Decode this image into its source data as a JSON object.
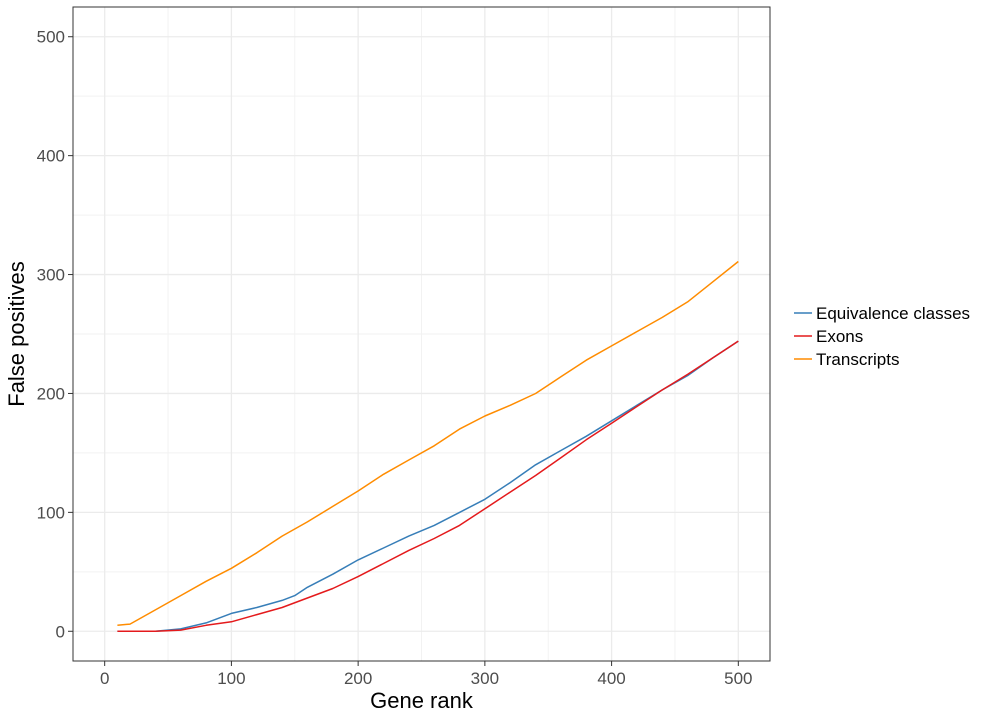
{
  "chart_data": {
    "type": "line",
    "title": "",
    "xlabel": "Gene rank",
    "ylabel": "False positives",
    "xlim": [
      -25,
      525
    ],
    "ylim": [
      -25,
      525
    ],
    "x_ticks": [
      0,
      100,
      200,
      300,
      400,
      500
    ],
    "y_ticks": [
      0,
      100,
      200,
      300,
      400,
      500
    ],
    "grid": true,
    "legend_position": "right",
    "series": [
      {
        "name": "Equivalence classes",
        "color": "#377eb8",
        "points": [
          [
            10,
            0
          ],
          [
            40,
            0
          ],
          [
            60,
            2
          ],
          [
            80,
            7
          ],
          [
            100,
            15
          ],
          [
            120,
            20
          ],
          [
            140,
            26
          ],
          [
            150,
            30
          ],
          [
            160,
            37
          ],
          [
            180,
            48
          ],
          [
            200,
            60
          ],
          [
            220,
            70
          ],
          [
            240,
            80
          ],
          [
            260,
            89
          ],
          [
            280,
            100
          ],
          [
            300,
            111
          ],
          [
            320,
            125
          ],
          [
            340,
            140
          ],
          [
            360,
            152
          ],
          [
            380,
            164
          ],
          [
            400,
            177
          ],
          [
            420,
            190
          ],
          [
            440,
            203
          ],
          [
            460,
            215
          ],
          [
            480,
            230
          ],
          [
            500,
            244
          ]
        ]
      },
      {
        "name": "Exons",
        "color": "#e41a1c",
        "points": [
          [
            10,
            0
          ],
          [
            40,
            0
          ],
          [
            60,
            1
          ],
          [
            80,
            5
          ],
          [
            100,
            8
          ],
          [
            120,
            14
          ],
          [
            140,
            20
          ],
          [
            160,
            28
          ],
          [
            180,
            36
          ],
          [
            200,
            46
          ],
          [
            220,
            57
          ],
          [
            240,
            68
          ],
          [
            260,
            78
          ],
          [
            280,
            89
          ],
          [
            300,
            103
          ],
          [
            320,
            117
          ],
          [
            340,
            131
          ],
          [
            360,
            146
          ],
          [
            380,
            161
          ],
          [
            400,
            175
          ],
          [
            420,
            189
          ],
          [
            440,
            203
          ],
          [
            460,
            216
          ],
          [
            480,
            230
          ],
          [
            500,
            244
          ]
        ]
      },
      {
        "name": "Transcripts",
        "color": "#ff8c00",
        "points": [
          [
            10,
            5
          ],
          [
            20,
            6
          ],
          [
            30,
            12
          ],
          [
            40,
            18
          ],
          [
            60,
            30
          ],
          [
            80,
            42
          ],
          [
            100,
            53
          ],
          [
            120,
            66
          ],
          [
            140,
            80
          ],
          [
            160,
            92
          ],
          [
            180,
            105
          ],
          [
            200,
            118
          ],
          [
            220,
            132
          ],
          [
            240,
            144
          ],
          [
            260,
            156
          ],
          [
            280,
            170
          ],
          [
            300,
            181
          ],
          [
            320,
            190
          ],
          [
            340,
            200
          ],
          [
            360,
            214
          ],
          [
            380,
            228
          ],
          [
            400,
            240
          ],
          [
            420,
            252
          ],
          [
            440,
            264
          ],
          [
            460,
            277
          ],
          [
            480,
            294
          ],
          [
            500,
            311
          ]
        ]
      }
    ]
  }
}
